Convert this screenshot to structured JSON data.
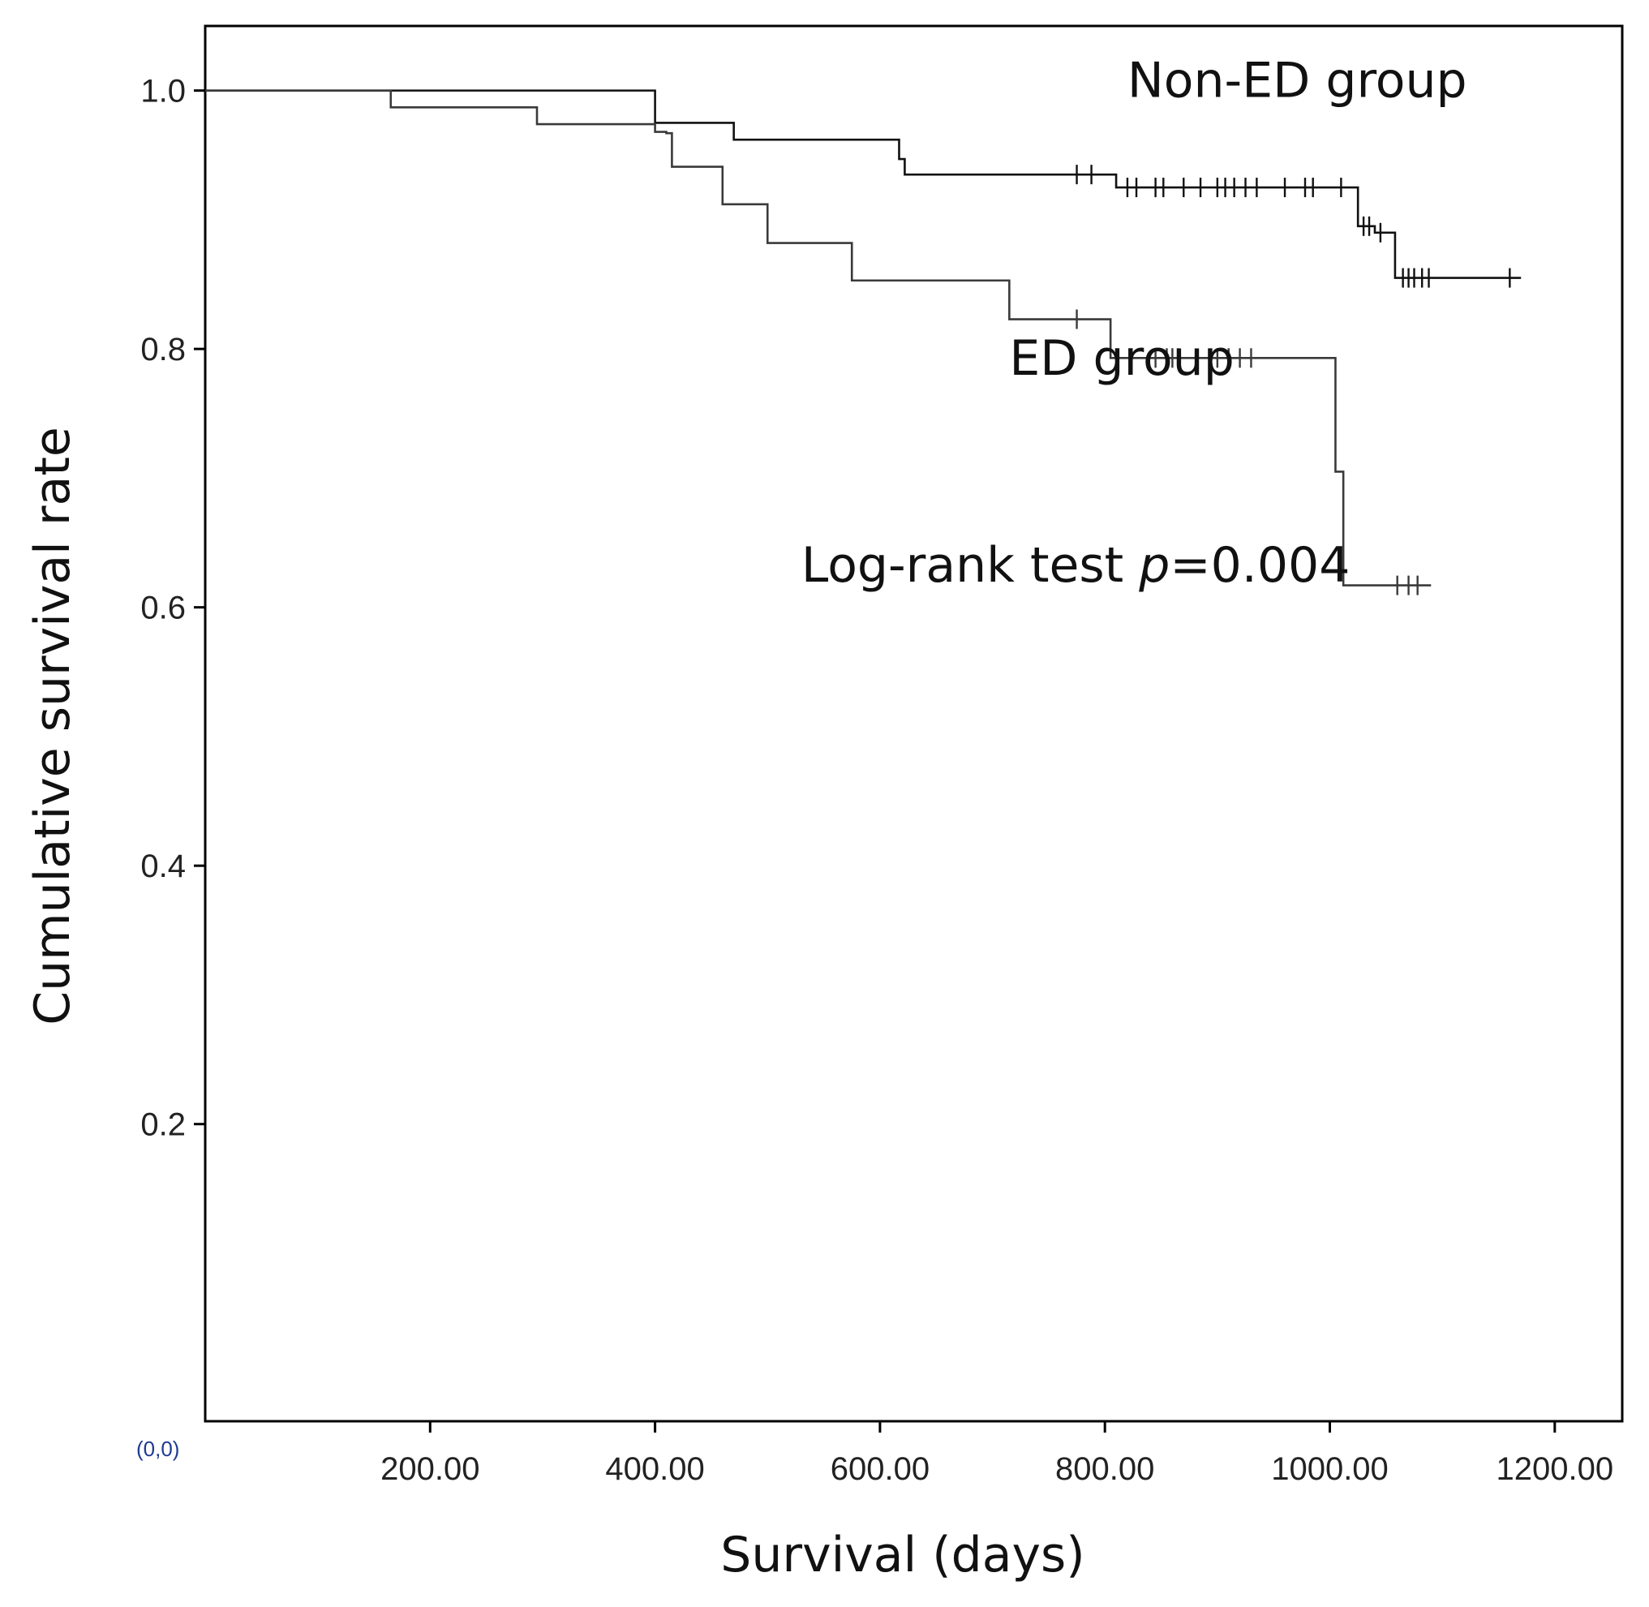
{
  "chart_data": {
    "type": "line",
    "subtype": "kaplan-meier step",
    "title": "",
    "xlabel": "Survival (days)",
    "ylabel": "Cumulative survival rate",
    "xlim": [
      0,
      1260
    ],
    "ylim": [
      -0.03,
      1.05
    ],
    "x_ticks": [
      {
        "value": 200,
        "label": "200.00"
      },
      {
        "value": 400,
        "label": "400.00"
      },
      {
        "value": 600,
        "label": "600.00"
      },
      {
        "value": 800,
        "label": "800.00"
      },
      {
        "value": 1000,
        "label": "1000.00"
      },
      {
        "value": 1200,
        "label": "1200.00"
      }
    ],
    "y_ticks": [
      {
        "value": 0.2,
        "label": "0.2"
      },
      {
        "value": 0.4,
        "label": "0.4"
      },
      {
        "value": 0.6,
        "label": "0.6"
      },
      {
        "value": 0.8,
        "label": "0.8"
      },
      {
        "value": 1.0,
        "label": "1.0"
      }
    ],
    "origin_label": "(0,0)",
    "annotations": [
      {
        "text": "Non-ED group",
        "x": 820,
        "y": 0.995
      },
      {
        "text": "ED group",
        "x": 715,
        "y": 0.78
      },
      {
        "text": "Log-rank test ",
        "italic": "p",
        "suffix": "=0.004",
        "x": 530,
        "y": 0.62
      }
    ],
    "series": [
      {
        "name": "Non-ED group",
        "color": "#111111",
        "steps": [
          {
            "x": 0,
            "y": 1.0
          },
          {
            "x": 400,
            "y": 0.975
          },
          {
            "x": 470,
            "y": 0.962
          },
          {
            "x": 617,
            "y": 0.947
          },
          {
            "x": 622,
            "y": 0.935
          },
          {
            "x": 810,
            "y": 0.925
          },
          {
            "x": 1025,
            "y": 0.895
          },
          {
            "x": 1040,
            "y": 0.89
          },
          {
            "x": 1058,
            "y": 0.855
          },
          {
            "x": 1170,
            "y": 0.855
          }
        ],
        "censored": [
          775,
          788,
          820,
          828,
          845,
          852,
          870,
          885,
          900,
          907,
          915,
          925,
          935,
          960,
          978,
          985,
          1010,
          1030,
          1035,
          1045,
          1065,
          1070,
          1075,
          1082,
          1088,
          1160
        ]
      },
      {
        "name": "ED group",
        "color": "#3a3a3a",
        "steps": [
          {
            "x": 0,
            "y": 1.0
          },
          {
            "x": 165,
            "y": 0.987
          },
          {
            "x": 295,
            "y": 0.974
          },
          {
            "x": 400,
            "y": 0.968
          },
          {
            "x": 410,
            "y": 0.967
          },
          {
            "x": 415,
            "y": 0.941
          },
          {
            "x": 460,
            "y": 0.912
          },
          {
            "x": 500,
            "y": 0.882
          },
          {
            "x": 575,
            "y": 0.853
          },
          {
            "x": 715,
            "y": 0.823
          },
          {
            "x": 805,
            "y": 0.793
          },
          {
            "x": 1005,
            "y": 0.705
          },
          {
            "x": 1012,
            "y": 0.617
          },
          {
            "x": 1090,
            "y": 0.617
          }
        ],
        "censored": [
          775,
          845,
          855,
          860,
          865,
          900,
          910,
          920,
          930,
          1060,
          1070,
          1078
        ]
      }
    ]
  }
}
